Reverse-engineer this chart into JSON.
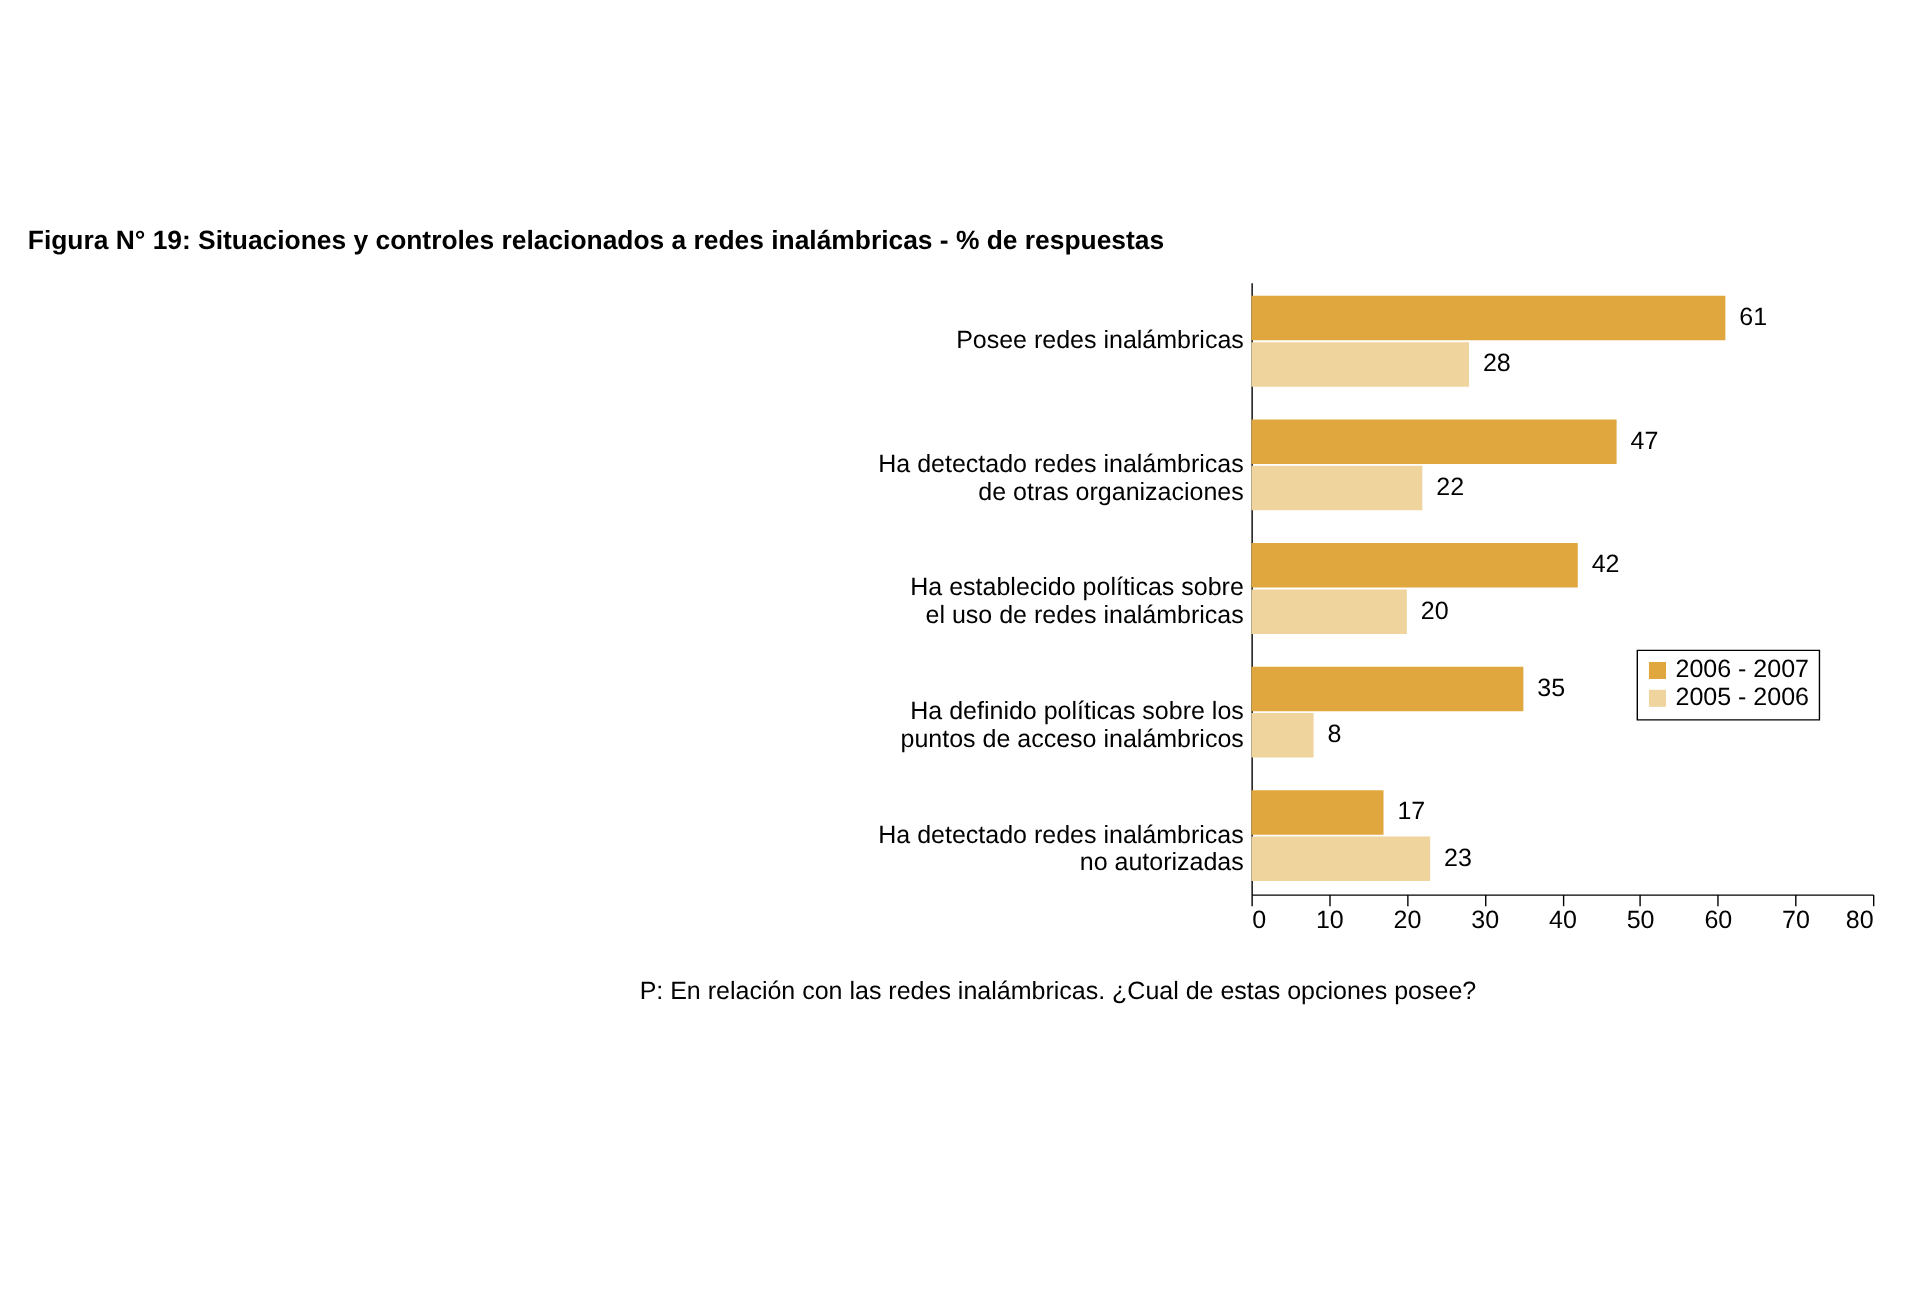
{
  "chart_data": {
    "type": "bar",
    "orientation": "horizontal",
    "title": "Figura N° 19: Situaciones y controles relacionados a redes inalámbricas - % de respuestas",
    "categories": [
      "Posee redes inalámbricas",
      "Ha detectado redes inalámbricas\nde otras organizaciones",
      "Ha establecido políticas sobre\nel uso de redes inalámbricas",
      "Ha definido políticas sobre los\npuntos de acceso inalámbricos",
      "Ha detectado redes inalámbricas\nno autorizadas"
    ],
    "series": [
      {
        "name": "2006 - 2007",
        "color": "#e0a73e",
        "values": [
          61,
          47,
          42,
          35,
          17
        ]
      },
      {
        "name": "2005 - 2006",
        "color": "#efd49e",
        "values": [
          28,
          22,
          20,
          8,
          23
        ]
      }
    ],
    "xlim": [
      0,
      80
    ],
    "xticks": [
      0,
      10,
      20,
      30,
      40,
      50,
      60,
      70,
      80
    ],
    "data_labels": true,
    "grid": false,
    "legend": "right",
    "annotations": [
      "P: En relación con las redes inalámbricas. ¿Cual de estas opciones posee?"
    ]
  }
}
